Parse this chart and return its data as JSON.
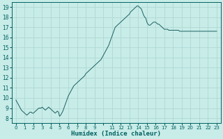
{
  "title": "",
  "xlabel": "Humidex (Indice chaleur)",
  "bg_color": "#c8ece8",
  "grid_color": "#aad4d0",
  "line_color": "#1a6060",
  "marker_color": "#1a6060",
  "font_color": "#006060",
  "xlim": [
    -0.5,
    23.5
  ],
  "ylim": [
    7.5,
    19.5
  ],
  "yticks": [
    8,
    9,
    10,
    11,
    12,
    13,
    14,
    15,
    16,
    17,
    18,
    19
  ],
  "x_values": [
    0.0,
    0.125,
    0.25,
    0.375,
    0.5,
    0.625,
    0.75,
    0.875,
    1.0,
    1.125,
    1.25,
    1.375,
    1.5,
    1.625,
    1.75,
    1.875,
    2.0,
    2.125,
    2.25,
    2.375,
    2.5,
    2.625,
    2.75,
    2.875,
    3.0,
    3.125,
    3.25,
    3.375,
    3.5,
    3.625,
    3.75,
    3.875,
    4.0,
    4.125,
    4.25,
    4.375,
    4.5,
    4.625,
    4.75,
    4.875,
    5.0,
    5.125,
    5.25,
    5.375,
    5.5,
    5.625,
    5.75,
    5.875,
    6.0,
    6.125,
    6.25,
    6.375,
    6.5,
    6.625,
    6.75,
    6.875,
    7.0,
    7.125,
    7.25,
    7.375,
    7.5,
    7.625,
    7.75,
    7.875,
    8.0,
    8.125,
    8.25,
    8.375,
    8.5,
    8.625,
    8.75,
    8.875,
    9.0,
    9.125,
    9.25,
    9.375,
    9.5,
    9.625,
    9.75,
    9.875,
    10.0,
    10.125,
    10.25,
    10.375,
    10.5,
    10.625,
    10.75,
    10.875,
    11.0,
    11.125,
    11.25,
    11.375,
    11.5,
    11.625,
    11.75,
    11.875,
    12.0,
    12.125,
    12.25,
    12.375,
    12.5,
    12.625,
    12.75,
    12.875,
    13.0,
    13.125,
    13.25,
    13.375,
    13.5,
    13.625,
    13.75,
    13.875,
    14.0,
    14.125,
    14.25,
    14.375,
    14.5,
    14.625,
    14.75,
    14.875,
    15.0,
    15.125,
    15.25,
    15.375,
    15.5,
    15.625,
    15.75,
    15.875,
    16.0,
    16.125,
    16.25,
    16.375,
    16.5,
    16.625,
    16.75,
    16.875,
    17.0,
    17.125,
    17.25,
    17.375,
    17.5,
    17.625,
    17.75,
    17.875,
    18.0,
    18.125,
    18.25,
    18.375,
    18.5,
    18.625,
    18.75,
    18.875,
    19.0,
    19.125,
    19.25,
    19.375,
    19.5,
    19.625,
    19.75,
    19.875,
    20.0,
    20.125,
    20.25,
    20.375,
    20.5,
    20.625,
    20.75,
    20.875,
    21.0,
    21.125,
    21.25,
    21.375,
    21.5,
    21.625,
    21.75,
    21.875,
    22.0,
    22.125,
    22.25,
    22.375,
    22.5,
    22.625,
    22.75,
    22.875,
    23.0
  ],
  "y_values": [
    9.8,
    9.6,
    9.4,
    9.2,
    9.0,
    8.8,
    8.7,
    8.6,
    8.5,
    8.4,
    8.3,
    8.4,
    8.5,
    8.6,
    8.6,
    8.5,
    8.5,
    8.6,
    8.7,
    8.8,
    8.9,
    9.0,
    9.0,
    9.0,
    9.1,
    9.0,
    8.9,
    8.8,
    8.9,
    9.0,
    9.1,
    9.0,
    8.9,
    8.8,
    8.7,
    8.6,
    8.5,
    8.6,
    8.7,
    8.6,
    8.2,
    8.3,
    8.5,
    8.7,
    9.0,
    9.3,
    9.6,
    9.9,
    10.2,
    10.4,
    10.6,
    10.8,
    11.0,
    11.2,
    11.3,
    11.4,
    11.5,
    11.6,
    11.7,
    11.8,
    11.9,
    12.0,
    12.1,
    12.2,
    12.4,
    12.5,
    12.6,
    12.7,
    12.8,
    12.9,
    13.0,
    13.1,
    13.2,
    13.3,
    13.4,
    13.5,
    13.6,
    13.7,
    13.8,
    14.0,
    14.2,
    14.4,
    14.6,
    14.8,
    15.0,
    15.2,
    15.5,
    15.8,
    16.1,
    16.4,
    16.7,
    17.0,
    17.1,
    17.2,
    17.3,
    17.4,
    17.5,
    17.6,
    17.7,
    17.8,
    17.9,
    18.0,
    18.1,
    18.2,
    18.3,
    18.5,
    18.6,
    18.7,
    18.8,
    18.9,
    19.0,
    19.1,
    19.1,
    19.0,
    18.9,
    18.8,
    18.5,
    18.2,
    18.0,
    17.9,
    17.5,
    17.3,
    17.2,
    17.2,
    17.3,
    17.4,
    17.5,
    17.5,
    17.5,
    17.4,
    17.3,
    17.3,
    17.2,
    17.1,
    17.0,
    16.9,
    16.8,
    16.8,
    16.8,
    16.8,
    16.7,
    16.7,
    16.7,
    16.7,
    16.7,
    16.7,
    16.7,
    16.7,
    16.7,
    16.7,
    16.6,
    16.6,
    16.6,
    16.6,
    16.6,
    16.6,
    16.6,
    16.6,
    16.6,
    16.6,
    16.6,
    16.6,
    16.6,
    16.6,
    16.6,
    16.6,
    16.6,
    16.6,
    16.6,
    16.6,
    16.6,
    16.6,
    16.6,
    16.6,
    16.6,
    16.6,
    16.6,
    16.6,
    16.6,
    16.6,
    16.6,
    16.6,
    16.6,
    16.6,
    16.6
  ]
}
